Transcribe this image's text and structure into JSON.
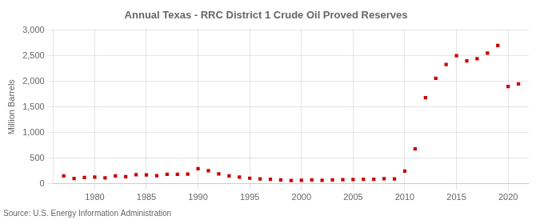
{
  "chart_data": {
    "type": "scatter",
    "title": "Annual Texas - RRC District 1 Crude Oil Proved Reserves",
    "ylabel": "Million Barrels",
    "annotation": "Source: U.S. Energy Information Administration",
    "x": [
      1977,
      1978,
      1979,
      1980,
      1981,
      1982,
      1983,
      1984,
      1985,
      1986,
      1987,
      1988,
      1989,
      1990,
      1991,
      1992,
      1993,
      1994,
      1995,
      1996,
      1997,
      1998,
      1999,
      2000,
      2001,
      2002,
      2003,
      2004,
      2005,
      2006,
      2007,
      2008,
      2009,
      2010,
      2011,
      2012,
      2013,
      2014,
      2015,
      2016,
      2017,
      2018,
      2019,
      2020,
      2021
    ],
    "values": [
      155,
      105,
      125,
      130,
      115,
      155,
      140,
      180,
      175,
      160,
      185,
      185,
      190,
      295,
      255,
      195,
      155,
      130,
      110,
      95,
      90,
      75,
      65,
      70,
      75,
      70,
      75,
      80,
      85,
      90,
      90,
      100,
      95,
      250,
      680,
      1680,
      2060,
      2330,
      2500,
      2400,
      2440,
      2550,
      2700,
      1900,
      1950
    ],
    "color": "#cc0000",
    "marker": "square",
    "xlim": [
      1976,
      2022
    ],
    "xticks": [
      1980,
      1985,
      1990,
      1995,
      2000,
      2005,
      2010,
      2015,
      2020
    ],
    "ylim": [
      0,
      3000
    ],
    "yticks": [
      0,
      500,
      {
        "value": 1000,
        "label": "1,000"
      },
      {
        "value": 1500,
        "label": "1,500"
      },
      {
        "value": 2000,
        "label": "2,000"
      },
      {
        "value": 2500,
        "label": "2,500"
      },
      {
        "value": 3000,
        "label": "3,000"
      }
    ],
    "grid": true
  }
}
